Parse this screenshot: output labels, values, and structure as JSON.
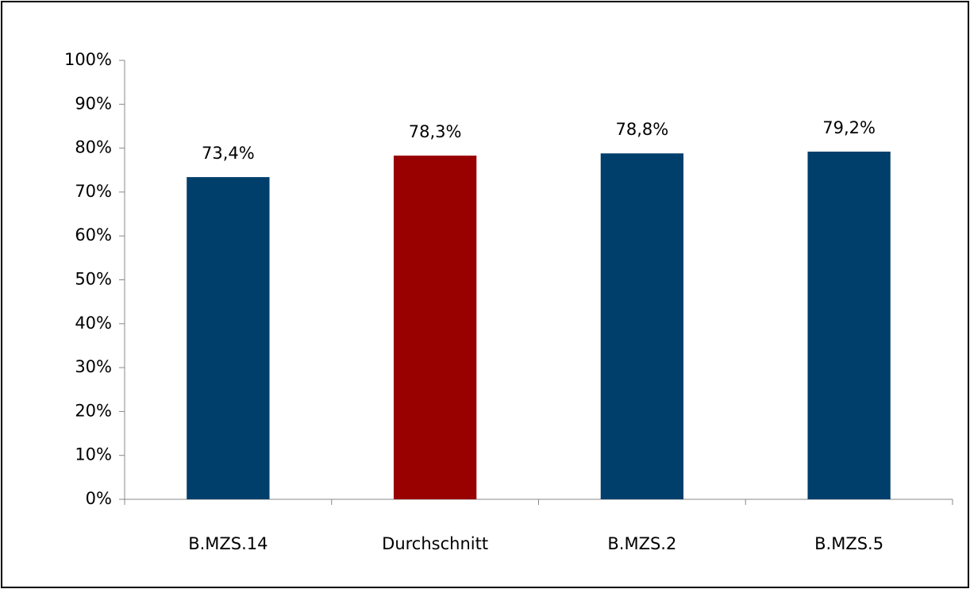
{
  "chart_data": {
    "type": "bar",
    "categories": [
      "B.MZS.14",
      "Durchschnitt",
      "B.MZS.2",
      "B.MZS.5"
    ],
    "values": [
      73.4,
      78.3,
      78.8,
      79.2
    ],
    "value_labels": [
      "73,4%",
      "78,3%",
      "78,8%",
      "79,2%"
    ],
    "colors": [
      "#003f6b",
      "#990000",
      "#003f6b",
      "#003f6b"
    ],
    "ylim": [
      0,
      100
    ],
    "yticks": [
      {
        "value": 0,
        "label": "0%"
      },
      {
        "value": 10,
        "label": "10%"
      },
      {
        "value": 20,
        "label": "20%"
      },
      {
        "value": 30,
        "label": "30%"
      },
      {
        "value": 40,
        "label": "40%"
      },
      {
        "value": 50,
        "label": "50%"
      },
      {
        "value": 60,
        "label": "60%"
      },
      {
        "value": 70,
        "label": "70%"
      },
      {
        "value": 80,
        "label": "80%"
      },
      {
        "value": 90,
        "label": "90%"
      },
      {
        "value": 100,
        "label": "100%"
      }
    ],
    "grid": false
  }
}
